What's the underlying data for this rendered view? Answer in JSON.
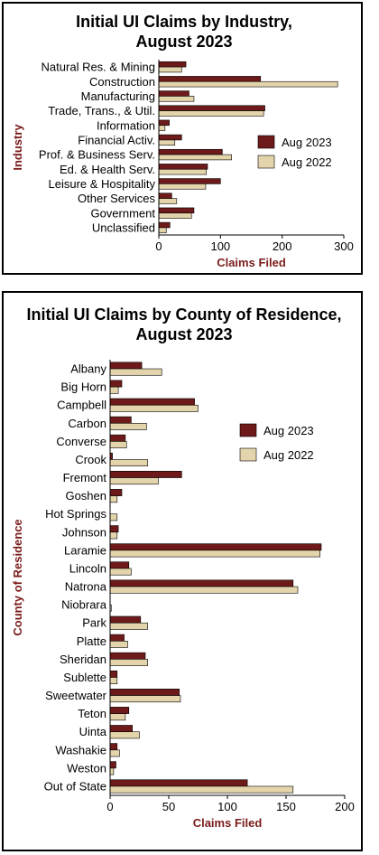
{
  "colors": {
    "aug2023": "#6e1a1a",
    "aug2022": "#e3d4ab",
    "axis_label": "#7a1c1c"
  },
  "chart_data": [
    {
      "type": "bar",
      "orientation": "horizontal",
      "title_lines": [
        "Initial UI Claims by Industry,",
        "August 2023"
      ],
      "xlabel": "Claims Filed",
      "ylabel": "Industry",
      "xlim": [
        0,
        300
      ],
      "xticks": [
        "0",
        "100",
        "200",
        "300"
      ],
      "legend_position": "right",
      "categories": [
        "Natural Res. & Mining",
        "Construction",
        "Manufacturing",
        "Trade, Trans., & Util.",
        "Information",
        "Financial Activ.",
        "Prof. & Business Serv.",
        "Ed. & Health Serv.",
        "Leisure & Hospitality",
        "Other Services",
        "Government",
        "Unclassified"
      ],
      "series": [
        {
          "name": "Aug 2023",
          "values": [
            44,
            165,
            49,
            172,
            17,
            37,
            103,
            79,
            100,
            21,
            57,
            18
          ]
        },
        {
          "name": "Aug 2022",
          "values": [
            37,
            290,
            57,
            170,
            10,
            26,
            118,
            77,
            76,
            29,
            53,
            12
          ]
        }
      ]
    },
    {
      "type": "bar",
      "orientation": "horizontal",
      "title_lines": [
        "Initial UI Claims by County of Residence,",
        "August 2023"
      ],
      "xlabel": "Claims Filed",
      "ylabel": "County of Residence",
      "xlim": [
        0,
        200
      ],
      "xticks": [
        "0",
        "50",
        "100",
        "150",
        "200"
      ],
      "legend_position": "right",
      "categories": [
        "Albany",
        "Big Horn",
        "Campbell",
        "Carbon",
        "Converse",
        "Crook",
        "Fremont",
        "Goshen",
        "Hot Springs",
        "Johnson",
        "Laramie",
        "Lincoln",
        "Natrona",
        "Niobrara",
        "Park",
        "Platte",
        "Sheridan",
        "Sublette",
        "Sweetwater",
        "Teton",
        "Uinta",
        "Washakie",
        "Weston",
        "Out of State"
      ],
      "series": [
        {
          "name": "Aug 2023",
          "values": [
            27,
            10,
            72,
            18,
            13,
            2,
            61,
            10,
            0,
            7,
            180,
            16,
            156,
            0,
            26,
            12,
            30,
            6,
            59,
            16,
            19,
            6,
            5,
            117
          ]
        },
        {
          "name": "Aug 2022",
          "values": [
            44,
            7,
            75,
            31,
            14,
            32,
            41,
            6,
            6,
            6,
            179,
            18,
            160,
            1,
            32,
            15,
            32,
            6,
            60,
            13,
            25,
            8,
            3,
            156
          ]
        }
      ]
    }
  ]
}
